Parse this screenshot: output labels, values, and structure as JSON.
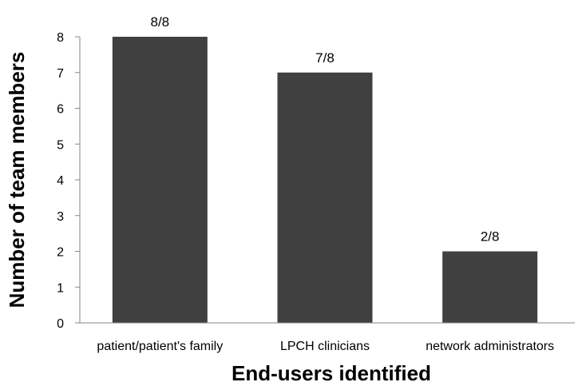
{
  "chart_data": {
    "type": "bar",
    "title": "",
    "xlabel": "End-users identified",
    "ylabel": "Number of team members",
    "ylim": [
      0,
      8
    ],
    "yticks": [
      0,
      1,
      2,
      3,
      4,
      5,
      6,
      7,
      8
    ],
    "categories": [
      "patient/patient's family",
      "LPCH clinicians",
      "network administrators"
    ],
    "values": [
      8,
      7,
      2
    ],
    "data_labels": [
      "8/8",
      "7/8",
      "2/8"
    ],
    "bar_color": "#404040",
    "axis_color": "#868686",
    "grid": false,
    "legend": "none"
  }
}
